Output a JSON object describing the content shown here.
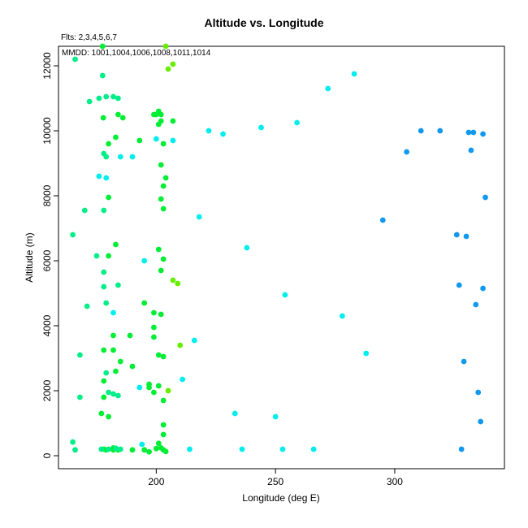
{
  "chart_data": {
    "type": "scatter",
    "title": "Altitude vs. Longitude",
    "annotations": {
      "fits": "Flts: 2,3,4,5,6,7",
      "mmdd": "MMDD: 1001,1004,1006,1008,1011,1014"
    },
    "xlabel": "Longitude (deg E)",
    "ylabel": "Altitude (m)",
    "xlim": [
      159,
      346
    ],
    "ylim": [
      -400,
      12600
    ],
    "xticks": [
      200,
      250,
      300
    ],
    "yticks": [
      0,
      2000,
      4000,
      6000,
      8000,
      10000,
      12000
    ],
    "grid": false,
    "colors": {
      "green": "#00ee33",
      "spring": "#00ee88",
      "lime": "#66ee00",
      "cyan": "#00eeee",
      "blue": "#1199ee"
    },
    "series": [
      {
        "color": "green",
        "points": [
          [
            177.5,
            12600
          ],
          [
            177.8,
            10400
          ],
          [
            184,
            10500
          ],
          [
            186,
            10400
          ],
          [
            180,
            9600
          ],
          [
            183,
            9800
          ],
          [
            193,
            9700
          ],
          [
            199,
            10500
          ],
          [
            200,
            10500
          ],
          [
            201,
            10600
          ],
          [
            202,
            10500
          ],
          [
            202,
            10300
          ],
          [
            201,
            10200
          ],
          [
            207,
            10300
          ],
          [
            203,
            9600
          ],
          [
            202,
            8950
          ],
          [
            204,
            8550
          ],
          [
            203,
            8300
          ],
          [
            202,
            7900
          ],
          [
            203,
            7600
          ],
          [
            180,
            7950
          ],
          [
            183,
            6500
          ],
          [
            180,
            6150
          ],
          [
            201,
            6350
          ],
          [
            203,
            6050
          ],
          [
            202,
            5700
          ],
          [
            195,
            4700
          ],
          [
            199,
            4400
          ],
          [
            202,
            4350
          ],
          [
            189,
            3700
          ],
          [
            182,
            3700
          ],
          [
            199,
            3950
          ],
          [
            199,
            3650
          ],
          [
            201,
            3100
          ],
          [
            203,
            3050
          ],
          [
            190,
            2750
          ],
          [
            182,
            3250
          ],
          [
            178,
            3250
          ],
          [
            183,
            2600
          ],
          [
            185,
            2900
          ],
          [
            178,
            2300
          ],
          [
            197,
            2200
          ],
          [
            197,
            2100
          ],
          [
            199,
            1950
          ],
          [
            201,
            2150
          ],
          [
            203,
            1700
          ],
          [
            178,
            1800
          ],
          [
            177,
            1300
          ],
          [
            203,
            950
          ],
          [
            203,
            650
          ],
          [
            180,
            1200
          ],
          [
            201,
            380
          ],
          [
            178,
            200
          ],
          [
            179,
            180
          ],
          [
            182,
            180
          ],
          [
            182,
            240
          ],
          [
            184,
            180
          ],
          [
            190,
            180
          ],
          [
            195,
            180
          ],
          [
            197,
            120
          ],
          [
            200,
            220
          ],
          [
            203,
            180
          ],
          [
            204,
            130
          ],
          [
            202,
            240
          ]
        ]
      },
      {
        "color": "spring",
        "points": [
          [
            166,
            12200
          ],
          [
            177.5,
            11700
          ],
          [
            172,
            10900
          ],
          [
            176,
            11000
          ],
          [
            179,
            11050
          ],
          [
            182,
            11050
          ],
          [
            184,
            11000
          ],
          [
            178,
            9300
          ],
          [
            179,
            9200
          ],
          [
            170,
            7550
          ],
          [
            178,
            7550
          ],
          [
            165,
            6800
          ],
          [
            175,
            6150
          ],
          [
            178,
            5650
          ],
          [
            178,
            5200
          ],
          [
            184,
            5250
          ],
          [
            179,
            4700
          ],
          [
            171,
            4600
          ],
          [
            168,
            3100
          ],
          [
            179,
            2550
          ],
          [
            180,
            1950
          ],
          [
            182,
            1900
          ],
          [
            184,
            1850
          ],
          [
            168,
            1800
          ],
          [
            165,
            420
          ],
          [
            166,
            180
          ],
          [
            177,
            200
          ],
          [
            180,
            200
          ],
          [
            183,
            230
          ],
          [
            185,
            200
          ]
        ]
      },
      {
        "color": "lime",
        "points": [
          [
            204,
            12600
          ],
          [
            207,
            12050
          ],
          [
            205,
            11900
          ],
          [
            207,
            5400
          ],
          [
            209,
            5300
          ],
          [
            210,
            3400
          ],
          [
            205,
            2000
          ]
        ]
      },
      {
        "color": "cyan",
        "points": [
          [
            283,
            11750
          ],
          [
            272,
            11300
          ],
          [
            259,
            10250
          ],
          [
            244,
            10100
          ],
          [
            222,
            10000
          ],
          [
            228,
            9900
          ],
          [
            200,
            9750
          ],
          [
            207,
            9700
          ],
          [
            185,
            9200
          ],
          [
            190,
            9200
          ],
          [
            176,
            8600
          ],
          [
            179,
            8550
          ],
          [
            218,
            7350
          ],
          [
            238,
            6400
          ],
          [
            195,
            6000
          ],
          [
            254,
            4950
          ],
          [
            278,
            4300
          ],
          [
            182,
            4400
          ],
          [
            216,
            3550
          ],
          [
            288,
            3150
          ],
          [
            211,
            2350
          ],
          [
            193,
            2100
          ],
          [
            233,
            1300
          ],
          [
            250,
            1200
          ],
          [
            194,
            350
          ],
          [
            214,
            200
          ],
          [
            236,
            200
          ],
          [
            253,
            200
          ],
          [
            266,
            200
          ]
        ]
      },
      {
        "color": "blue",
        "points": [
          [
            311,
            10000
          ],
          [
            319,
            10000
          ],
          [
            331,
            9950
          ],
          [
            333,
            9950
          ],
          [
            337,
            9900
          ],
          [
            305,
            9350
          ],
          [
            332,
            9400
          ],
          [
            338,
            7950
          ],
          [
            295,
            7250
          ],
          [
            326,
            6800
          ],
          [
            330,
            6750
          ],
          [
            327,
            5250
          ],
          [
            337,
            5150
          ],
          [
            334,
            4650
          ],
          [
            329,
            2900
          ],
          [
            335,
            1950
          ],
          [
            336,
            1050
          ],
          [
            328,
            200
          ]
        ]
      }
    ]
  }
}
